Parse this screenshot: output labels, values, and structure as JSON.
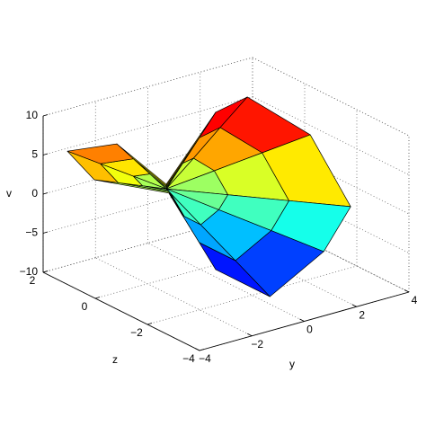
{
  "chart_data": {
    "type": "surface",
    "ylabel": "y",
    "zlabel": "z",
    "vlabel": "v",
    "ylim": [
      -4,
      4
    ],
    "yticks": [
      {
        "value": -4,
        "label": "−4"
      },
      {
        "value": -2,
        "label": "−2"
      },
      0,
      2,
      4
    ],
    "zlim": [
      -4,
      2
    ],
    "zticks": [
      {
        "value": -4,
        "label": "−4"
      },
      {
        "value": -2,
        "label": "−2"
      },
      0,
      2
    ],
    "vlim": [
      -10,
      10
    ],
    "vticks": [
      {
        "value": -10,
        "label": "−10"
      },
      {
        "value": -5,
        "label": "−5"
      },
      0,
      5,
      10
    ],
    "grid": true,
    "colormap": "jet",
    "edge_color": "#000000",
    "surface": {
      "y": [
        [
          -0.72,
          -0.72,
          -0.72,
          -0.72,
          -0.72,
          -0.72,
          -0.72,
          -0.72,
          -0.72,
          -0.72,
          -0.72,
          -0.72,
          -0.72
        ],
        [
          -1.68,
          -1.16,
          -0.71,
          -0.09,
          0.17,
          0.45,
          0.5,
          0.18,
          -0.36,
          -0.74,
          -0.69,
          -1.54,
          -1.68
        ],
        [
          -2.64,
          -1.59,
          -0.7,
          0.55,
          1.05,
          1.61,
          1.71,
          1.08,
          0.01,
          -0.76,
          -0.67,
          -2.37,
          -2.64
        ],
        [
          -3.6,
          -2.03,
          -0.69,
          1.18,
          1.94,
          2.78,
          2.93,
          1.98,
          0.37,
          -0.78,
          -0.64,
          -3.19,
          -3.6
        ]
      ],
      "z": [
        [
          0.57,
          0.57,
          0.57,
          0.57,
          0.57,
          0.57,
          0.57,
          0.57,
          0.57,
          0.57,
          0.57,
          0.57,
          0.57
        ],
        [
          0.87,
          0.76,
          0.58,
          0.57,
          0.42,
          -0.1,
          -0.57,
          -0.54,
          -0.39,
          -0.08,
          0.54,
          0.66,
          0.87
        ],
        [
          1.17,
          0.96,
          0.59,
          0.58,
          0.28,
          -0.77,
          -1.7,
          -1.65,
          -1.35,
          -0.74,
          0.51,
          0.76,
          1.17
        ],
        [
          1.47,
          1.15,
          0.6,
          0.58,
          0.13,
          -1.44,
          -2.84,
          -2.76,
          -2.31,
          -1.39,
          0.48,
          0.85,
          1.47
        ]
      ],
      "v": [
        [
          0,
          0,
          0,
          0,
          0,
          0,
          0,
          0,
          0,
          0,
          0,
          0,
          0
        ],
        [
          2,
          2,
          0.17,
          2.67,
          3.33,
          2.33,
          0,
          -1.67,
          -3.33,
          -2.33,
          -0.17,
          1,
          2
        ],
        [
          4,
          4,
          0.33,
          5.33,
          6.67,
          4.67,
          0,
          -3.33,
          -6.67,
          -4.67,
          -0.33,
          2,
          4
        ],
        [
          6,
          6,
          0.5,
          8,
          10,
          7,
          0,
          -5,
          -10,
          -7,
          -0.5,
          3,
          6
        ]
      ]
    }
  }
}
